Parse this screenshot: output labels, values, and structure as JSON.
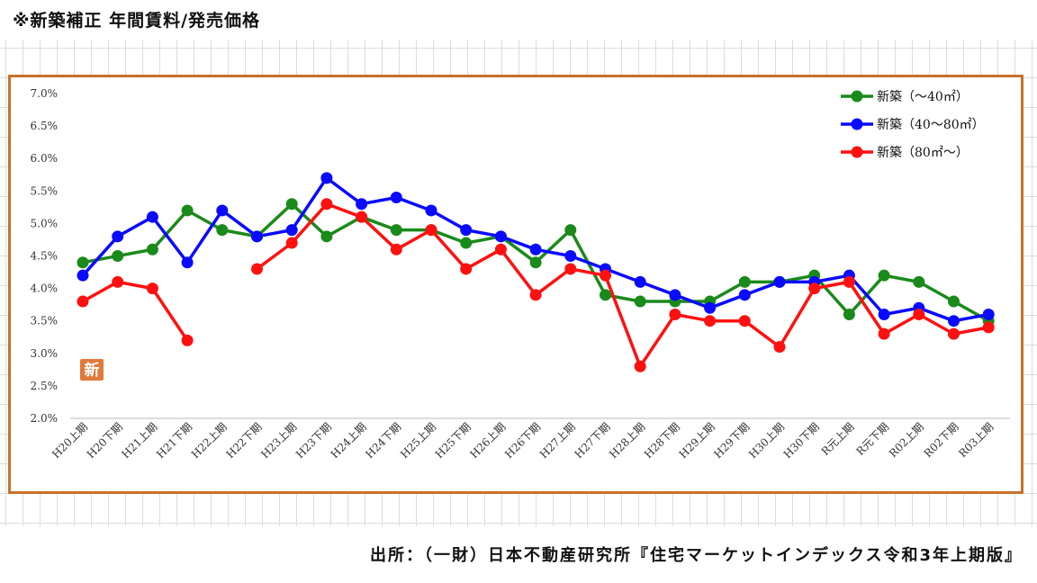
{
  "page": {
    "title": "※新築補正 年間賃料/発売価格",
    "source": "出所：（一財）日本不動産研究所『住宅マーケットインデックス令和3年上期版』",
    "stamp": "新"
  },
  "chart_data": {
    "type": "line",
    "title": "",
    "xlabel": "",
    "ylabel": "",
    "ylim": [
      2.0,
      7.0
    ],
    "yticks": [
      "2.0%",
      "2.5%",
      "3.0%",
      "3.5%",
      "4.0%",
      "4.5%",
      "5.0%",
      "5.5%",
      "6.0%",
      "6.5%",
      "7.0%"
    ],
    "categories": [
      "H20上期",
      "H20下期",
      "H21上期",
      "H21下期",
      "H22上期",
      "H22下期",
      "H23上期",
      "H23下期",
      "H24上期",
      "H24下期",
      "H25上期",
      "H25下期",
      "H26上期",
      "H26下期",
      "H27上期",
      "H27下期",
      "H28上期",
      "H28下期",
      "H29上期",
      "H29下期",
      "H30上期",
      "H30下期",
      "R元上期",
      "R元下期",
      "R02上期",
      "R02下期",
      "R03上期"
    ],
    "grid": false,
    "legend_position": "top-right",
    "series": [
      {
        "name": "新築（～40㎡）",
        "color": "#1a8a1a",
        "values": [
          4.4,
          4.5,
          4.6,
          5.2,
          4.9,
          4.8,
          5.3,
          4.8,
          5.1,
          4.9,
          4.9,
          4.7,
          4.8,
          4.4,
          4.9,
          3.9,
          3.8,
          3.8,
          3.8,
          4.1,
          4.1,
          4.2,
          3.6,
          4.2,
          4.1,
          3.8,
          3.5
        ]
      },
      {
        "name": "新築（40～80㎡）",
        "color": "#0a0aff",
        "values": [
          4.2,
          4.8,
          5.1,
          4.4,
          5.2,
          4.8,
          4.9,
          5.7,
          5.3,
          5.4,
          5.2,
          4.9,
          4.8,
          4.6,
          4.5,
          4.3,
          4.1,
          3.9,
          3.7,
          3.9,
          4.1,
          4.1,
          4.2,
          3.6,
          3.7,
          3.5,
          3.6
        ]
      },
      {
        "name": "新築（80㎡～）",
        "color": "#ff1010",
        "values": [
          3.8,
          4.1,
          4.0,
          3.2,
          null,
          4.3,
          4.7,
          5.3,
          5.1,
          4.6,
          4.9,
          4.3,
          4.6,
          3.9,
          4.3,
          4.2,
          2.8,
          3.6,
          3.5,
          3.5,
          3.1,
          4.0,
          4.1,
          3.3,
          3.6,
          3.3,
          3.4
        ]
      }
    ]
  }
}
